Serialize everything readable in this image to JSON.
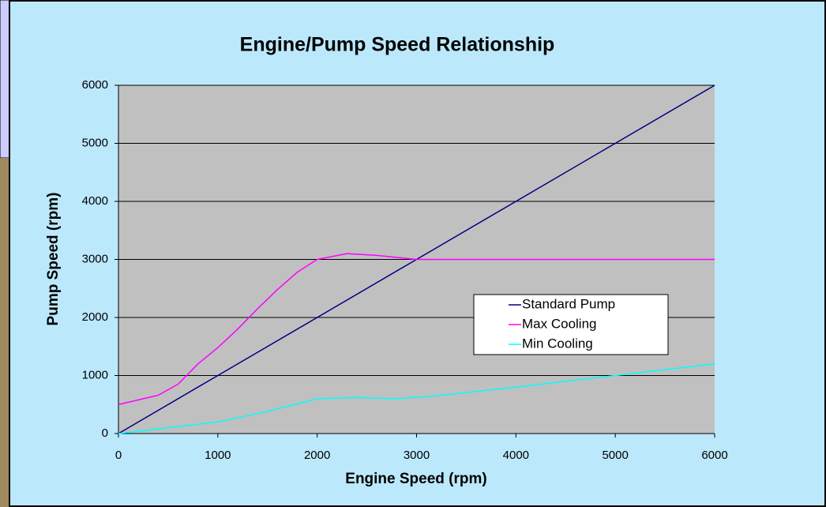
{
  "chart_data": {
    "type": "line",
    "title": "Engine/Pump Speed Relationship",
    "x_label": "Engine Speed (rpm)",
    "y_label": "Pump Speed (rpm)",
    "xlim": [
      0,
      6000
    ],
    "xticks": [
      0,
      1000,
      2000,
      3000,
      4000,
      5000,
      6000
    ],
    "ylim": [
      0,
      6000
    ],
    "yticks": [
      0,
      1000,
      2000,
      3000,
      4000,
      5000,
      6000
    ],
    "grid": true,
    "legend": "right",
    "series": [
      {
        "name": "Standard Pump",
        "color": "#000080",
        "x": [
          0,
          1000,
          2000,
          3000,
          4000,
          5000,
          6000
        ],
        "values": [
          0,
          1000,
          2000,
          3000,
          4000,
          5000,
          6000
        ]
      },
      {
        "name": "Max Cooling",
        "color": "#ff00ff",
        "x": [
          0,
          200,
          400,
          600,
          800,
          1000,
          1200,
          1400,
          1600,
          1800,
          2000,
          2300,
          2600,
          3000,
          6000
        ],
        "values": [
          500,
          580,
          660,
          850,
          1200,
          1480,
          1800,
          2150,
          2480,
          2780,
          3000,
          3100,
          3070,
          3000,
          3000
        ]
      },
      {
        "name": "Min Cooling",
        "color": "#00ffff",
        "x": [
          0,
          500,
          1000,
          1500,
          2000,
          2400,
          2800,
          3200,
          4000,
          5000,
          6000
        ],
        "values": [
          0,
          100,
          200,
          380,
          600,
          620,
          600,
          650,
          800,
          1000,
          1200
        ]
      }
    ]
  }
}
